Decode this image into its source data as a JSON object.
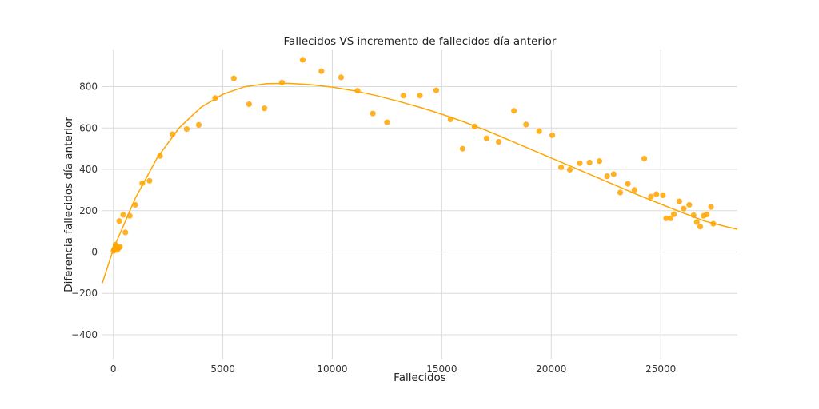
{
  "chart_data": {
    "type": "scatter",
    "title": "Fallecidos VS incremento de fallecidos día anterior",
    "xlabel": "Fallecidos",
    "ylabel": "Diferencia fallecidos día anterior",
    "xlim": [
      -500,
      28500
    ],
    "ylim": [
      -520,
      980
    ],
    "xticks": [
      0,
      5000,
      10000,
      15000,
      20000,
      25000
    ],
    "xtick_labels": [
      "0",
      "5000",
      "10000",
      "15000",
      "20000",
      "25000"
    ],
    "yticks": [
      -400,
      -200,
      0,
      200,
      400,
      600,
      800
    ],
    "ytick_labels": [
      "−400",
      "−200",
      "0",
      "200",
      "400",
      "600",
      "800"
    ],
    "grid": true,
    "color": "#ffa500",
    "series": [
      {
        "values": [
          [
            10,
            5
          ],
          [
            30,
            10
          ],
          [
            50,
            15
          ],
          [
            80,
            20
          ],
          [
            100,
            35
          ],
          [
            130,
            25
          ],
          [
            180,
            10
          ],
          [
            250,
            20
          ],
          [
            300,
            25
          ],
          [
            270,
            150
          ],
          [
            450,
            180
          ],
          [
            550,
            95
          ],
          [
            750,
            175
          ],
          [
            1000,
            228
          ],
          [
            1320,
            333
          ],
          [
            1650,
            345
          ],
          [
            2130,
            465
          ],
          [
            2700,
            570
          ],
          [
            3350,
            595
          ],
          [
            3900,
            615
          ],
          [
            4650,
            745
          ],
          [
            5500,
            840
          ],
          [
            6200,
            715
          ],
          [
            6900,
            695
          ],
          [
            7700,
            820
          ],
          [
            8650,
            930
          ],
          [
            9500,
            875
          ],
          [
            10400,
            845
          ],
          [
            11150,
            780
          ],
          [
            11850,
            670
          ],
          [
            12500,
            628
          ],
          [
            13250,
            757
          ],
          [
            14000,
            757
          ],
          [
            14750,
            782
          ],
          [
            15400,
            642
          ],
          [
            15950,
            500
          ],
          [
            16500,
            607
          ],
          [
            17050,
            550
          ],
          [
            17600,
            533
          ],
          [
            18300,
            683
          ],
          [
            18850,
            617
          ],
          [
            19450,
            585
          ],
          [
            20050,
            565
          ],
          [
            20450,
            410
          ],
          [
            20850,
            398
          ],
          [
            21300,
            430
          ],
          [
            21750,
            433
          ],
          [
            22200,
            440
          ],
          [
            22550,
            367
          ],
          [
            22850,
            377
          ],
          [
            23150,
            288
          ],
          [
            23500,
            330
          ],
          [
            23800,
            300
          ],
          [
            24250,
            452
          ],
          [
            24550,
            268
          ],
          [
            24800,
            280
          ],
          [
            25100,
            275
          ],
          [
            25250,
            163
          ],
          [
            25450,
            163
          ],
          [
            25600,
            183
          ],
          [
            25850,
            245
          ],
          [
            26050,
            210
          ],
          [
            26300,
            228
          ],
          [
            26500,
            178
          ],
          [
            26650,
            145
          ],
          [
            26800,
            123
          ],
          [
            26950,
            175
          ],
          [
            27100,
            182
          ],
          [
            27300,
            218
          ],
          [
            27400,
            137
          ]
        ]
      }
    ],
    "fit_curve": {
      "type": "polynomial",
      "points": [
        [
          -500,
          -150
        ],
        [
          0,
          15
        ],
        [
          1000,
          260
        ],
        [
          2000,
          455
        ],
        [
          3000,
          600
        ],
        [
          4000,
          700
        ],
        [
          5000,
          763
        ],
        [
          6000,
          800
        ],
        [
          7000,
          815
        ],
        [
          8000,
          816
        ],
        [
          9000,
          810
        ],
        [
          10000,
          798
        ],
        [
          11000,
          780
        ],
        [
          12000,
          757
        ],
        [
          13000,
          730
        ],
        [
          14000,
          700
        ],
        [
          15000,
          667
        ],
        [
          16000,
          630
        ],
        [
          17000,
          590
        ],
        [
          18000,
          545
        ],
        [
          19000,
          500
        ],
        [
          20000,
          455
        ],
        [
          21000,
          410
        ],
        [
          22000,
          365
        ],
        [
          23000,
          320
        ],
        [
          24000,
          275
        ],
        [
          25000,
          232
        ],
        [
          26000,
          190
        ],
        [
          27000,
          150
        ],
        [
          28000,
          122
        ],
        [
          28500,
          110
        ]
      ]
    }
  }
}
